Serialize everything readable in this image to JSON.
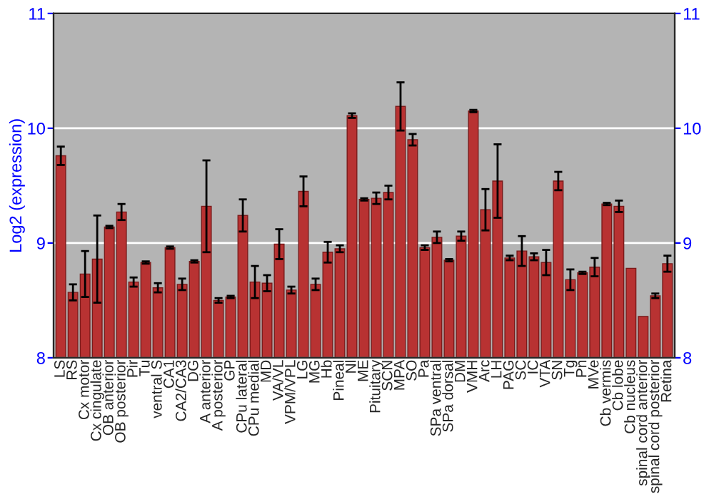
{
  "chart_data": {
    "type": "bar",
    "ylabel": "Log2 (expression)",
    "categories": [
      "LS",
      "RS",
      "Cx motor",
      "Cx cingulate",
      "OB anterior",
      "OB posterior",
      "Pir",
      "Tu",
      "ventral S",
      "CA1",
      "CA2/CA3",
      "DG",
      "A anterior",
      "A posterior",
      "GP",
      "CPu lateral",
      "CPu medial",
      "MD",
      "VA/VL",
      "VPM/VPL",
      "LG",
      "MG",
      "Hb",
      "Pineal",
      "Nl",
      "ME",
      "Pituitary",
      "SCN",
      "MPA",
      "SO",
      "Pa",
      "SPa ventral",
      "SPa dorsal",
      "DM",
      "VMH",
      "Arc",
      "LH",
      "PAG",
      "SC",
      "IC",
      "VTA",
      "SN",
      "Tg",
      "Pn",
      "MVe",
      "Cb vermis",
      "Cb lobe",
      "Cb nucleus",
      "spinal cord anterior",
      "spinal cord posterior",
      "Retina"
    ],
    "values": [
      9.76,
      8.57,
      8.73,
      8.86,
      9.14,
      9.27,
      8.66,
      8.83,
      8.61,
      8.96,
      8.64,
      8.84,
      9.32,
      8.5,
      8.53,
      9.24,
      8.66,
      8.65,
      8.99,
      8.59,
      9.45,
      8.64,
      8.92,
      8.95,
      10.11,
      9.38,
      9.39,
      9.44,
      10.19,
      9.9,
      8.96,
      9.05,
      8.85,
      9.06,
      10.15,
      9.29,
      9.54,
      8.87,
      8.93,
      8.88,
      8.83,
      9.54,
      8.68,
      8.74,
      8.79,
      9.34,
      9.32,
      8.78,
      8.36,
      8.54,
      8.82
    ],
    "errors": [
      0.08,
      0.07,
      0.2,
      0.38,
      0.01,
      0.07,
      0.04,
      0.01,
      0.04,
      0.01,
      0.05,
      0.01,
      0.4,
      0.02,
      0.01,
      0.14,
      0.14,
      0.07,
      0.13,
      0.03,
      0.13,
      0.05,
      0.09,
      0.03,
      0.02,
      0.01,
      0.05,
      0.06,
      0.21,
      0.05,
      0.02,
      0.05,
      0.01,
      0.04,
      0.01,
      0.18,
      0.32,
      0.02,
      0.13,
      0.03,
      0.11,
      0.08,
      0.09,
      0.01,
      0.08,
      0.01,
      0.05,
      null,
      null,
      0.02,
      0.07
    ],
    "color": "#b83232",
    "ylim": [
      8,
      11
    ],
    "yticks": [
      8,
      9,
      10,
      11
    ],
    "y2lim": [
      8,
      11
    ],
    "y2ticks": [
      8,
      9,
      10,
      11
    ],
    "grid": "y",
    "legend": false
  }
}
